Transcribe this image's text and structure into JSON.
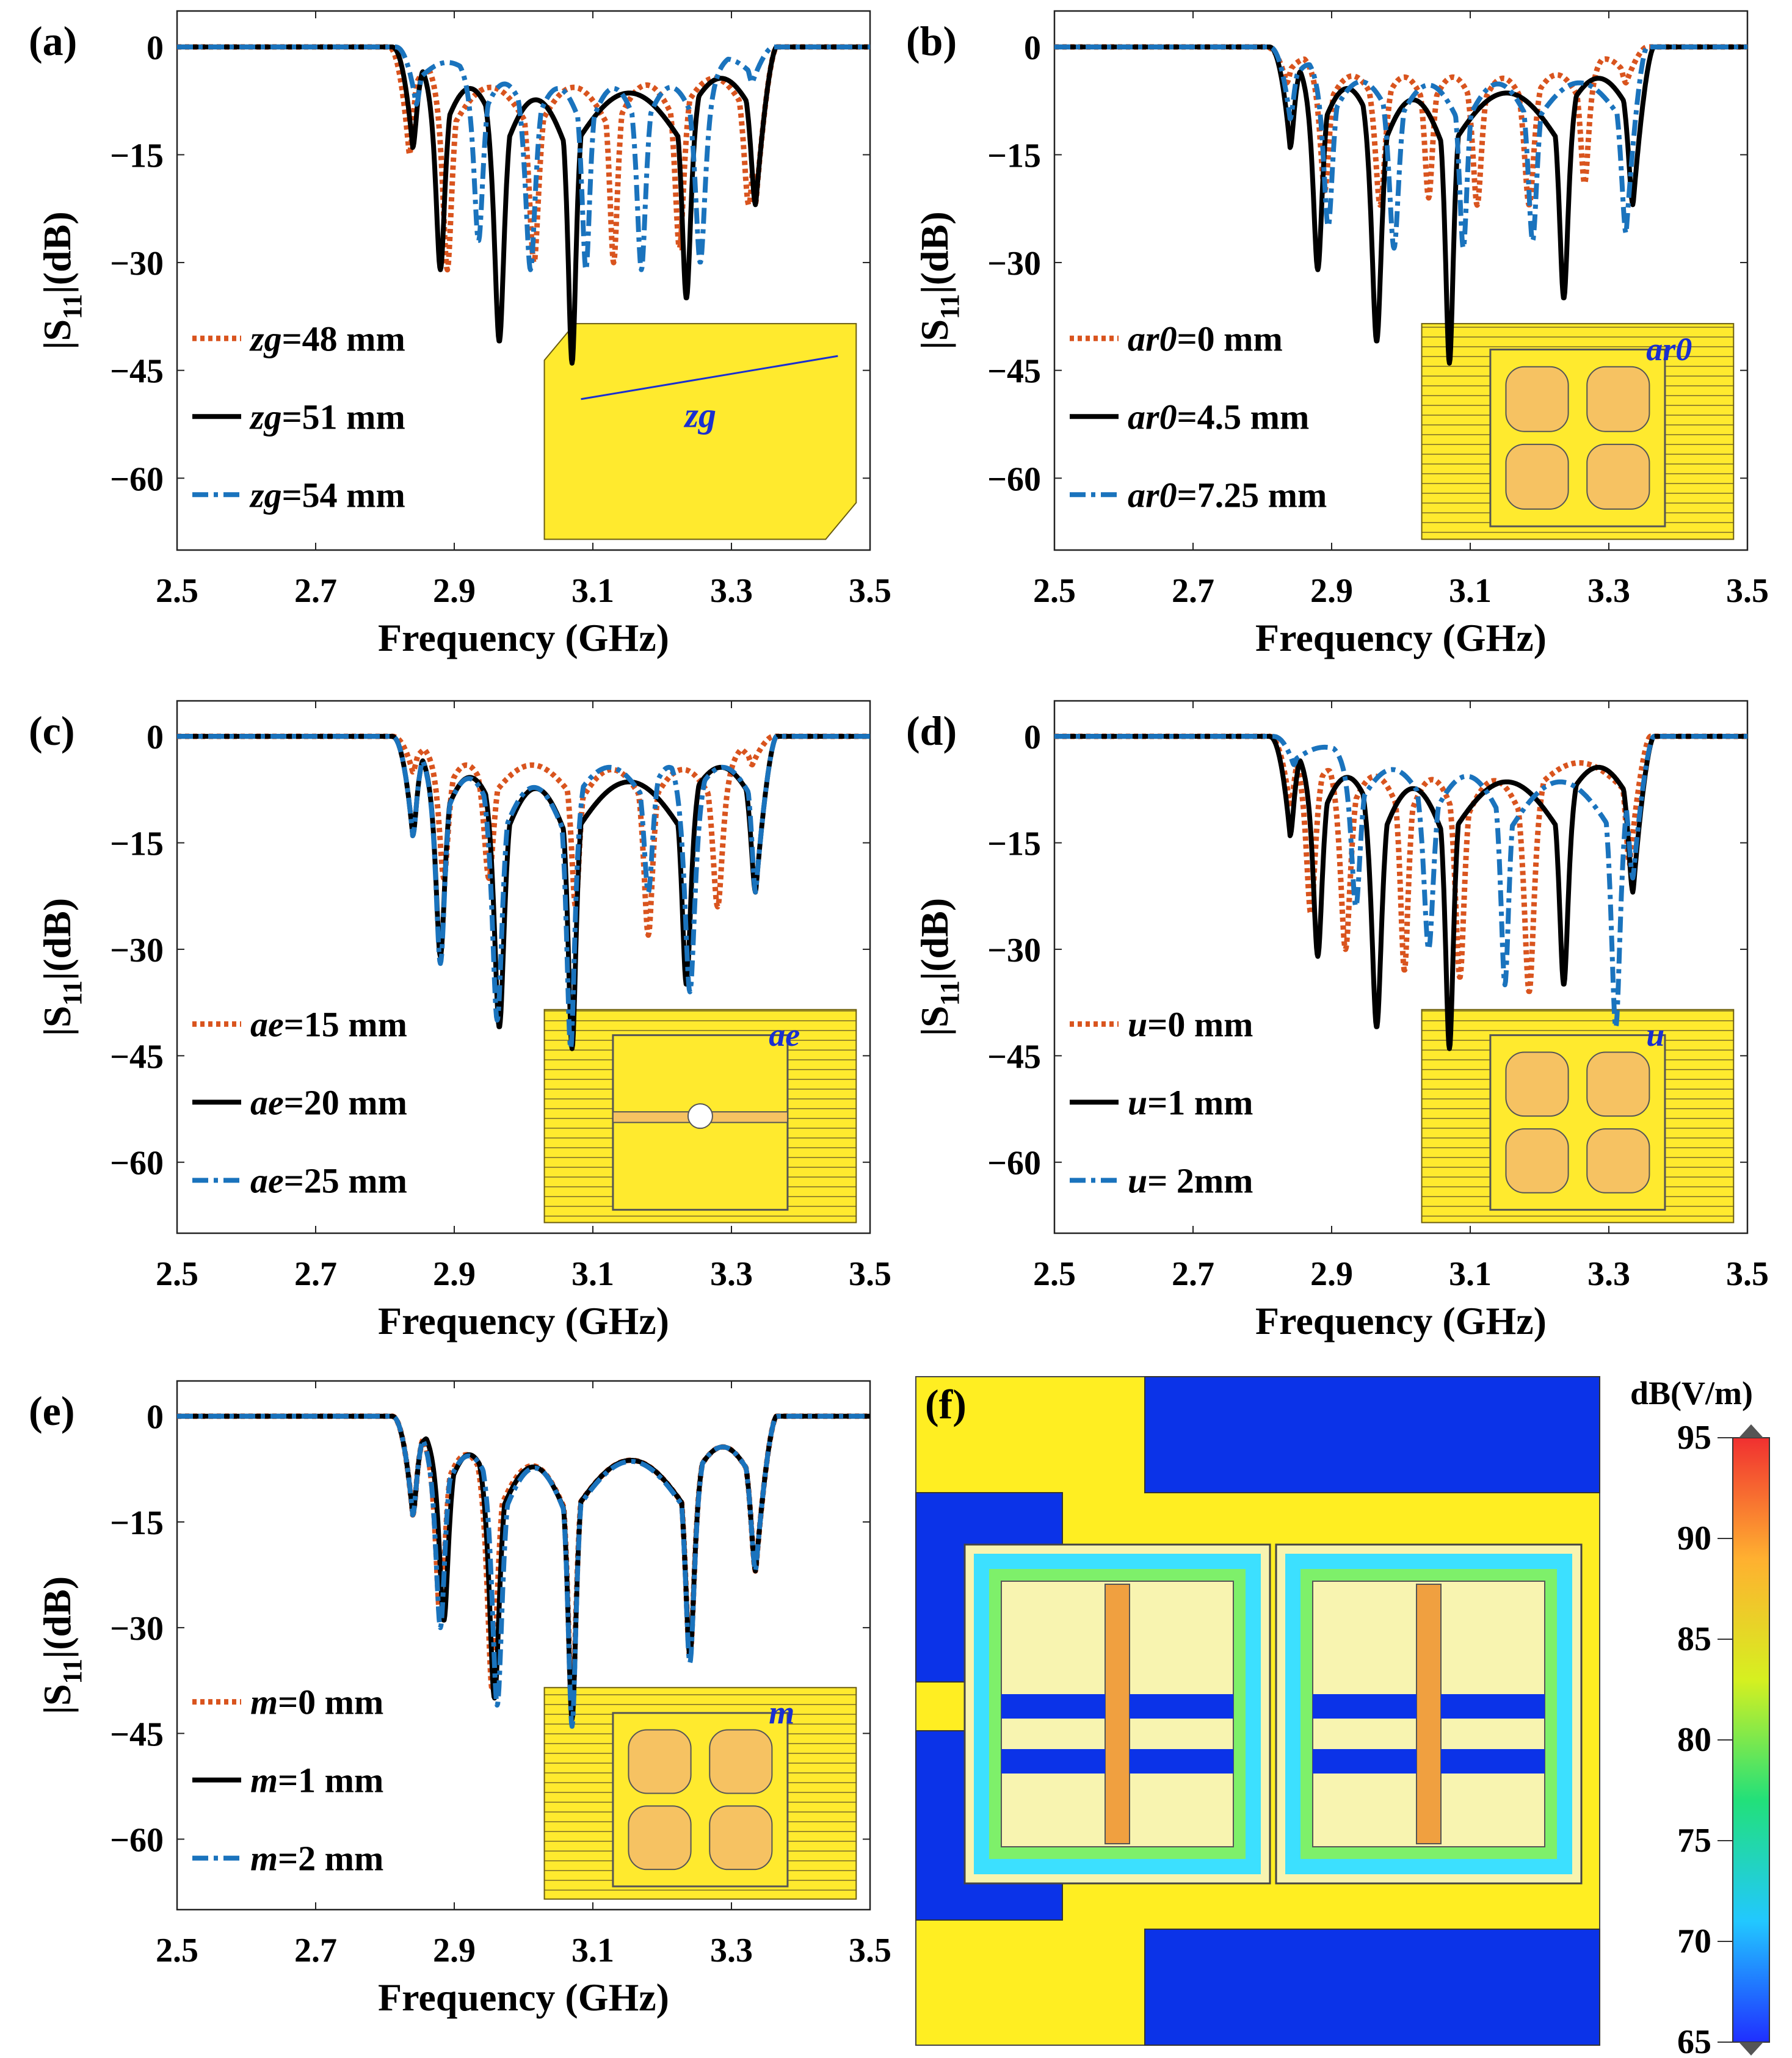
{
  "chart_data": [
    {
      "type": "line",
      "panel_label": "(a)",
      "xlabel": "Frequency (GHz)",
      "ylabel_parts": [
        "|S",
        "11",
        "|(dB)"
      ],
      "xlim": [
        2.5,
        3.5
      ],
      "ylim": [
        -70,
        5
      ],
      "xticks": [
        "2.5",
        "2.7",
        "2.9",
        "3.1",
        "3.3",
        "3.5"
      ],
      "yticks": [
        "0",
        "-15",
        "-30",
        "-45",
        "-60"
      ],
      "legend": [
        {
          "var": "zg",
          "value": "=48 mm"
        },
        {
          "var": "zg",
          "value": "=51 mm"
        },
        {
          "var": "zg",
          "value": "=54 mm"
        }
      ],
      "inset_label": "zg",
      "series": [
        {
          "name": "zg=48 mm",
          "edges": [
            2.835,
            3.335
          ],
          "edge_depths": [
            15,
            22
          ],
          "dips": [
            [
              2.89,
              31
            ],
            [
              3.015,
              30
            ],
            [
              3.13,
              30
            ],
            [
              3.225,
              28
            ],
            [
              3.325,
              22
            ]
          ]
        },
        {
          "name": "zg=51 mm",
          "edges": [
            2.84,
            3.335
          ],
          "edge_depths": [
            14,
            22
          ],
          "dips": [
            [
              2.88,
              31
            ],
            [
              2.965,
              41
            ],
            [
              3.07,
              44
            ],
            [
              3.235,
              35
            ]
          ]
        },
        {
          "name": "zg=54 mm",
          "edges": [
            2.845,
            3.33
          ],
          "edge_depths": [
            8,
            5
          ],
          "dips": [
            [
              2.935,
              27
            ],
            [
              3.01,
              31
            ],
            [
              3.09,
              31
            ],
            [
              3.17,
              31
            ],
            [
              3.255,
              30
            ]
          ]
        }
      ]
    },
    {
      "type": "line",
      "panel_label": "(b)",
      "xlabel": "Frequency (GHz)",
      "ylabel_parts": [
        "|S",
        "11",
        "|(dB)"
      ],
      "xlim": [
        2.5,
        3.5
      ],
      "ylim": [
        -70,
        5
      ],
      "xticks": [
        "2.5",
        "2.7",
        "2.9",
        "3.1",
        "3.3",
        "3.5"
      ],
      "yticks": [
        "0",
        "-15",
        "-30",
        "-45",
        "-60"
      ],
      "legend": [
        {
          "var": "ar0",
          "value": "=0 mm"
        },
        {
          "var": "ar0",
          "value": "=4.5 mm"
        },
        {
          "var": "ar0",
          "value": "=7.25 mm"
        }
      ],
      "inset_label": "ar0",
      "series": [
        {
          "name": "ar0=0 mm",
          "edges": [
            2.835,
            3.325
          ],
          "edge_depths": [
            5,
            5
          ],
          "dips": [
            [
              2.89,
              20
            ],
            [
              2.97,
              22
            ],
            [
              3.04,
              21
            ],
            [
              3.11,
              22
            ],
            [
              3.185,
              22
            ],
            [
              3.265,
              19
            ]
          ]
        },
        {
          "name": "ar0=4.5 mm",
          "edges": [
            2.84,
            3.335
          ],
          "edge_depths": [
            14,
            22
          ],
          "dips": [
            [
              2.88,
              31
            ],
            [
              2.965,
              41
            ],
            [
              3.07,
              44
            ],
            [
              3.235,
              35
            ]
          ]
        },
        {
          "name": "ar0=7.25 mm",
          "edges": [
            2.84,
            3.325
          ],
          "edge_depths": [
            10,
            26
          ],
          "dips": [
            [
              2.895,
              25
            ],
            [
              2.99,
              28
            ],
            [
              3.09,
              28
            ],
            [
              3.19,
              27
            ]
          ]
        }
      ]
    },
    {
      "type": "line",
      "panel_label": "(c)",
      "xlabel": "Frequency (GHz)",
      "ylabel_parts": [
        "|S",
        "11",
        "|(dB)"
      ],
      "xlim": [
        2.5,
        3.5
      ],
      "ylim": [
        -70,
        5
      ],
      "xticks": [
        "2.5",
        "2.7",
        "2.9",
        "3.1",
        "3.3",
        "3.5"
      ],
      "yticks": [
        "0",
        "-15",
        "-30",
        "-45",
        "-60"
      ],
      "legend": [
        {
          "var": "ae",
          "value": "=15 mm"
        },
        {
          "var": "ae",
          "value": "=20 mm"
        },
        {
          "var": "ae",
          "value": "=25 mm"
        }
      ],
      "inset_label": "ae",
      "series": [
        {
          "name": "ae=15 mm",
          "edges": [
            2.84,
            3.33
          ],
          "edge_depths": [
            5,
            4
          ],
          "dips": [
            [
              2.885,
              20
            ],
            [
              2.95,
              20
            ],
            [
              3.075,
              24
            ],
            [
              3.18,
              28
            ],
            [
              3.28,
              24
            ]
          ]
        },
        {
          "name": "ae=20 mm",
          "edges": [
            2.84,
            3.335
          ],
          "edge_depths": [
            14,
            22
          ],
          "dips": [
            [
              2.88,
              31
            ],
            [
              2.965,
              41
            ],
            [
              3.07,
              44
            ],
            [
              3.235,
              35
            ]
          ]
        },
        {
          "name": "ae=25 mm",
          "edges": [
            2.84,
            3.335
          ],
          "edge_depths": [
            14,
            22
          ],
          "dips": [
            [
              2.88,
              32
            ],
            [
              2.962,
              40
            ],
            [
              3.068,
              44
            ],
            [
              3.18,
              22
            ],
            [
              3.24,
              36
            ]
          ]
        }
      ]
    },
    {
      "type": "line",
      "panel_label": "(d)",
      "xlabel": "Frequency (GHz)",
      "ylabel_parts": [
        "|S",
        "11",
        "|(dB)"
      ],
      "xlim": [
        2.5,
        3.5
      ],
      "ylim": [
        -70,
        5
      ],
      "xticks": [
        "2.5",
        "2.7",
        "2.9",
        "3.1",
        "3.3",
        "3.5"
      ],
      "yticks": [
        "0",
        "-15",
        "-30",
        "-45",
        "-60"
      ],
      "legend": [
        {
          "var": "u",
          "value": "=0 mm"
        },
        {
          "var": "u",
          "value": "=1 mm"
        },
        {
          "var": "u",
          "value": "= 2mm"
        }
      ],
      "inset_label": "u",
      "series": [
        {
          "name": "u=0 mm",
          "edges": [
            2.84,
            3.33
          ],
          "edge_depths": [
            10,
            18
          ],
          "dips": [
            [
              2.87,
              25
            ],
            [
              2.92,
              30
            ],
            [
              3.005,
              33
            ],
            [
              3.085,
              34
            ],
            [
              3.185,
              36
            ]
          ]
        },
        {
          "name": "u=1 mm",
          "edges": [
            2.84,
            3.335
          ],
          "edge_depths": [
            14,
            22
          ],
          "dips": [
            [
              2.88,
              31
            ],
            [
              2.965,
              41
            ],
            [
              3.07,
              44
            ],
            [
              3.235,
              35
            ]
          ]
        },
        {
          "name": "u= 2mm",
          "edges": [
            2.845,
            3.335
          ],
          "edge_depths": [
            4,
            20
          ],
          "dips": [
            [
              2.935,
              24
            ],
            [
              3.04,
              30
            ],
            [
              3.15,
              35
            ],
            [
              3.31,
              41
            ]
          ]
        }
      ]
    },
    {
      "type": "line",
      "panel_label": "(e)",
      "xlabel": "Frequency (GHz)",
      "ylabel_parts": [
        "|S",
        "11",
        "|(dB)"
      ],
      "xlim": [
        2.5,
        3.5
      ],
      "ylim": [
        -70,
        5
      ],
      "xticks": [
        "2.5",
        "2.7",
        "2.9",
        "3.1",
        "3.3",
        "3.5"
      ],
      "yticks": [
        "0",
        "-15",
        "-30",
        "-45",
        "-60"
      ],
      "legend": [
        {
          "var": "m",
          "value": "=0 mm"
        },
        {
          "var": "m",
          "value": "=1 mm"
        },
        {
          "var": "m",
          "value": "=2 mm"
        }
      ],
      "inset_label": "m",
      "series": [
        {
          "name": "m=0 mm",
          "edges": [
            2.84,
            3.335
          ],
          "edge_depths": [
            14,
            22
          ],
          "dips": [
            [
              2.88,
              29
            ],
            [
              2.955,
              39
            ],
            [
              3.07,
              42
            ],
            [
              3.24,
              34
            ]
          ]
        },
        {
          "name": "m=1 mm",
          "edges": [
            2.84,
            3.335
          ],
          "edge_depths": [
            14,
            22
          ],
          "dips": [
            [
              2.885,
              29
            ],
            [
              2.958,
              40
            ],
            [
              3.07,
              43
            ],
            [
              3.24,
              34
            ]
          ]
        },
        {
          "name": "m=2 mm",
          "edges": [
            2.84,
            3.335
          ],
          "edge_depths": [
            14,
            22
          ],
          "dips": [
            [
              2.88,
              30
            ],
            [
              2.962,
              41
            ],
            [
              3.07,
              44
            ],
            [
              3.24,
              35
            ]
          ]
        }
      ]
    },
    {
      "type": "heatmap",
      "panel_label": "(f)",
      "colorbar_title": "dB(V/m)",
      "colorbar_range": [
        65,
        95
      ],
      "colorbar_ticks": [
        "95",
        "90",
        "85",
        "80",
        "75",
        "70",
        "65"
      ]
    }
  ],
  "colors": {
    "series": [
      "#d9541e",
      "#000000",
      "#1a73bd"
    ],
    "field_blue": "#0b33e8",
    "field_yellow": "#ffee22",
    "inset_yellow": "#ffea2e",
    "inset_orange": "#f6c262"
  }
}
